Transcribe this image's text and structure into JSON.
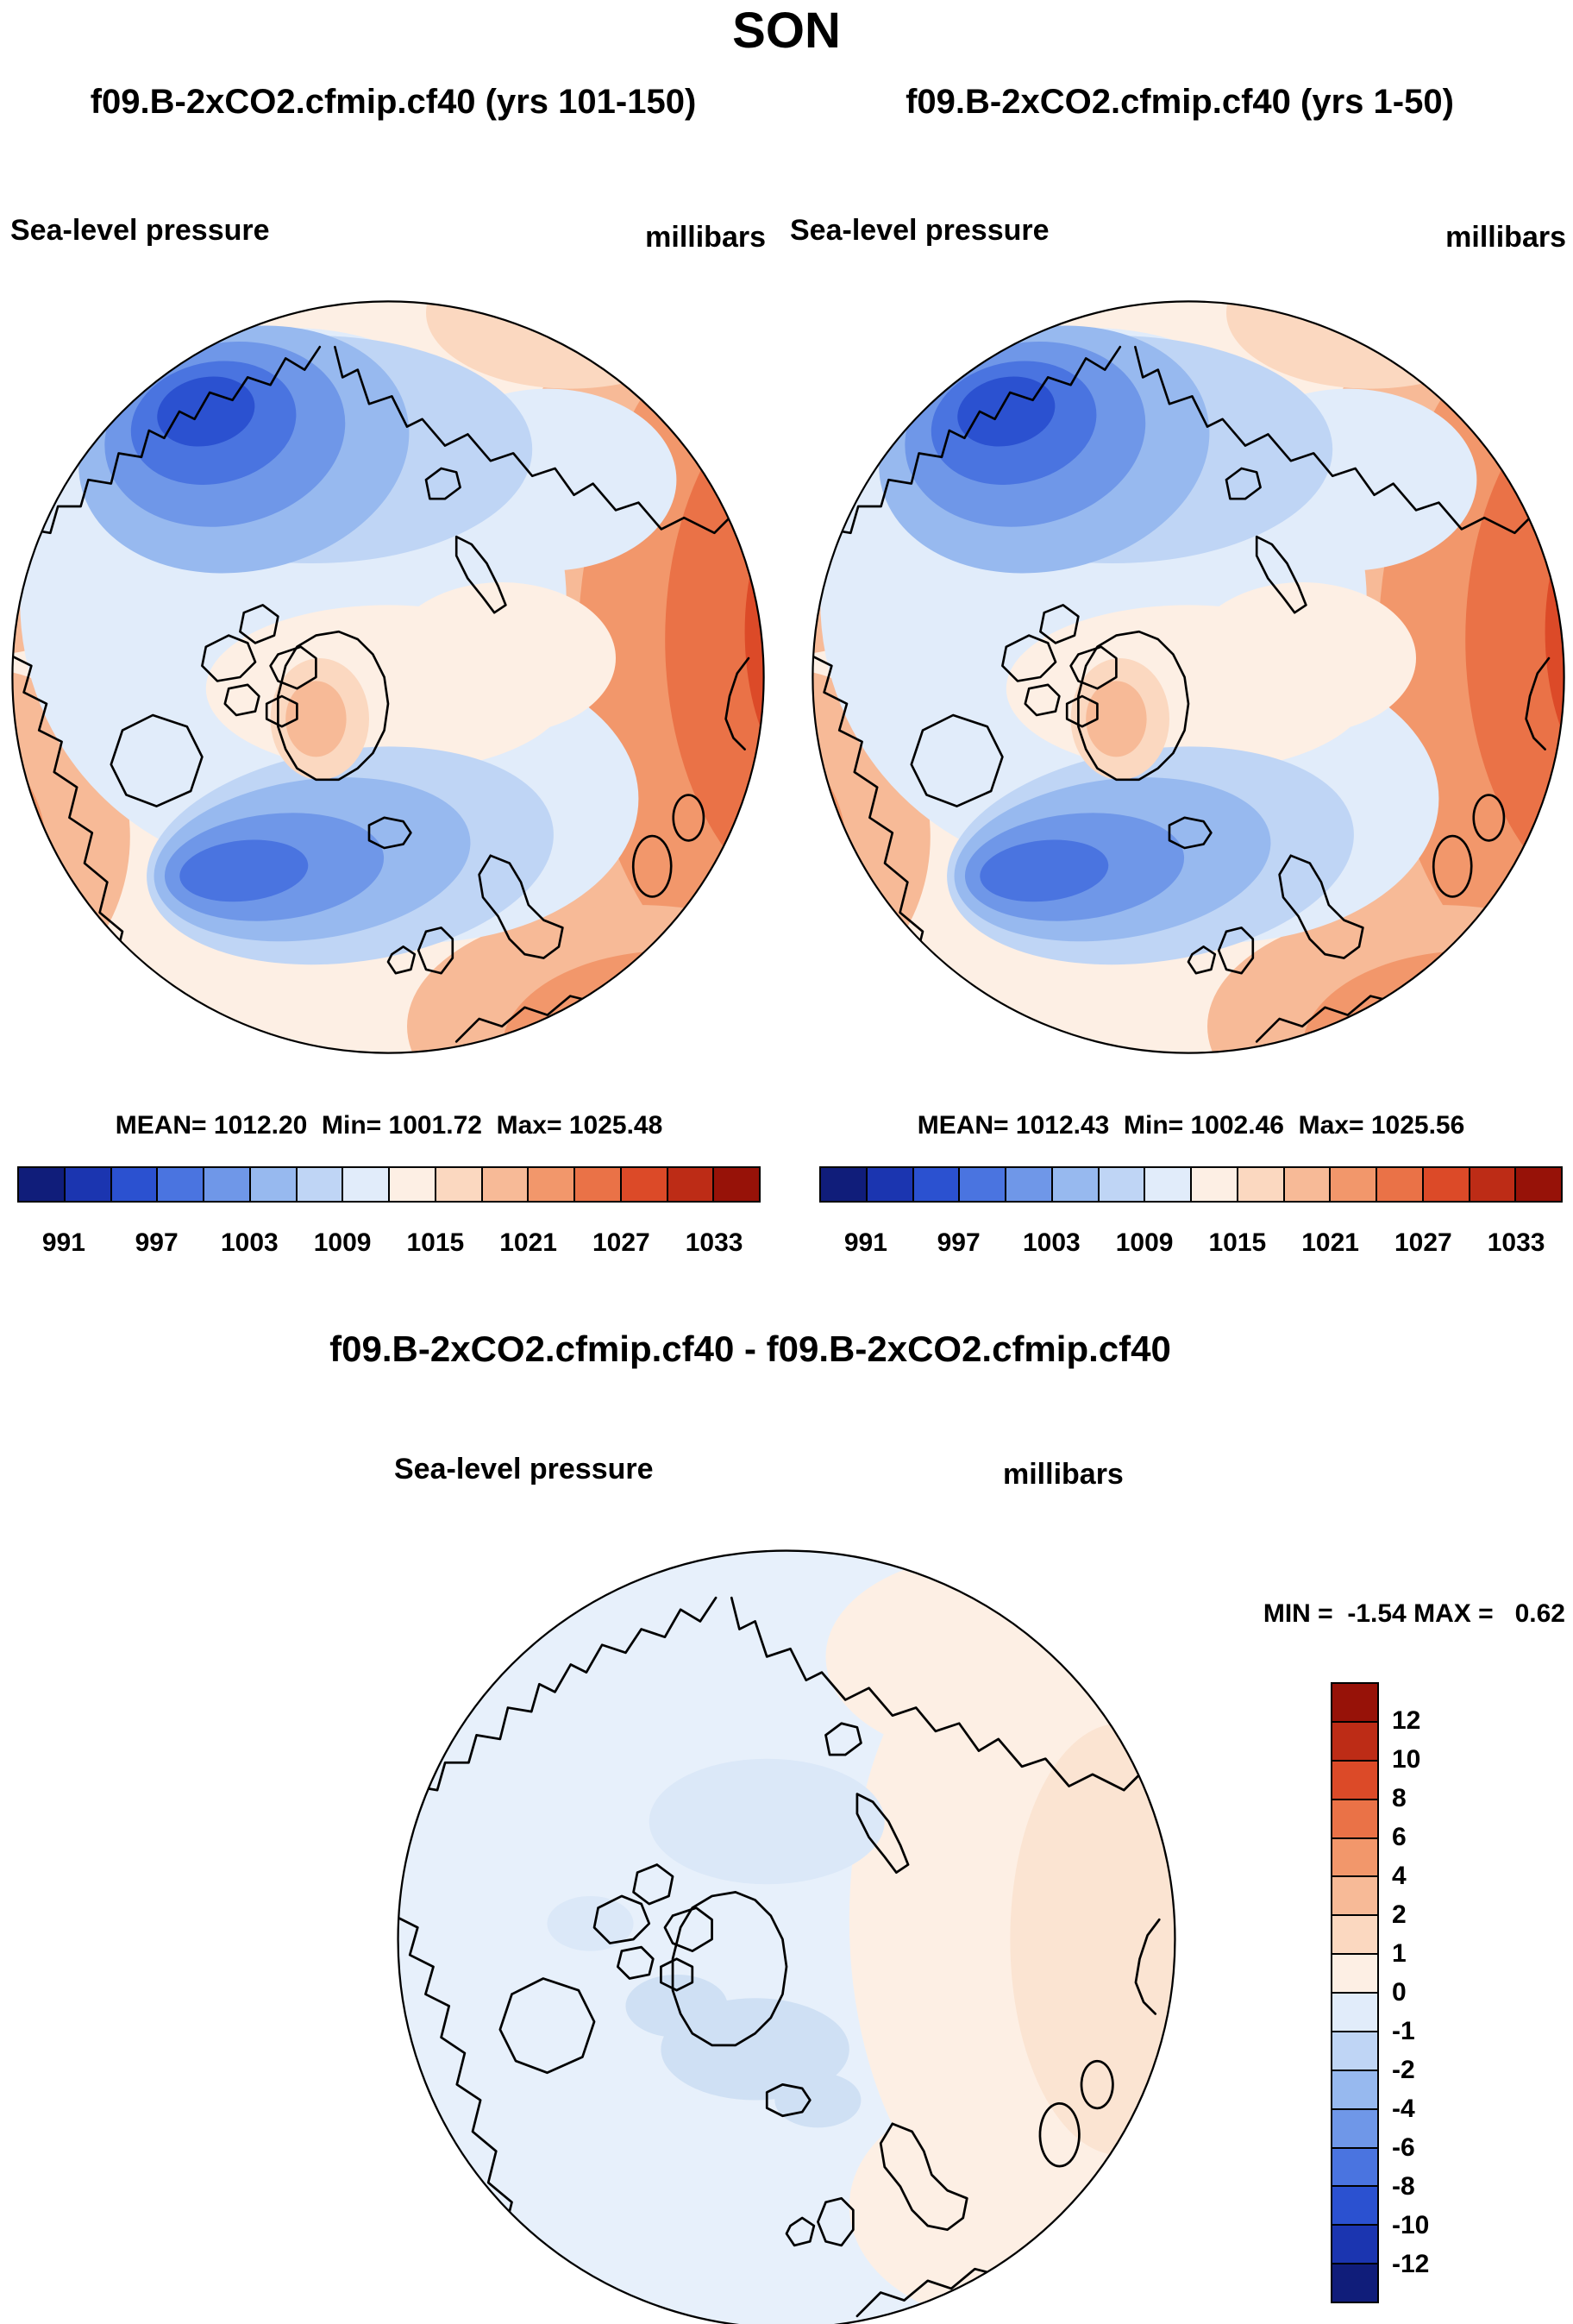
{
  "header": {
    "season": "SON"
  },
  "panels": {
    "left": {
      "run_label": "f09.B-2xCO2.cfmip.cf40 (yrs 101-150)",
      "field_label": "Sea-level pressure",
      "units": "millibars",
      "stats": "MEAN= 1012.20  Min= 1001.72  Max= 1025.48"
    },
    "right": {
      "run_label": "f09.B-2xCO2.cfmip.cf40 (yrs 1-50)",
      "field_label": "Sea-level pressure",
      "units": "millibars",
      "stats": "MEAN= 1012.43  Min= 1002.46  Max= 1025.56"
    },
    "diff": {
      "run_label": "f09.B-2xCO2.cfmip.cf40 - f09.B-2xCO2.cfmip.cf40",
      "field_label": "Sea-level pressure",
      "units": "millibars",
      "minmax": "MIN =  -1.54 MAX =   0.62"
    }
  },
  "colorbar_slp": {
    "ticks": [
      "991",
      "997",
      "1003",
      "1009",
      "1015",
      "1021",
      "1027",
      "1033"
    ],
    "colors": [
      "#101d7a",
      "#1b35b0",
      "#2b51d0",
      "#4a74e0",
      "#6f97e8",
      "#97b9ef",
      "#bfd5f5",
      "#e1ecfa",
      "#fdefe4",
      "#fbd8c0",
      "#f7ba97",
      "#f2976b",
      "#ea7247",
      "#dc4a28",
      "#bd2c16",
      "#971208"
    ]
  },
  "colorbar_diff": {
    "ticks": [
      "12",
      "10",
      "8",
      "6",
      "4",
      "2",
      "1",
      "0",
      "-1",
      "-2",
      "-4",
      "-6",
      "-8",
      "-10",
      "-12"
    ],
    "colors": [
      "#971208",
      "#bd2c16",
      "#dc4a28",
      "#ea7247",
      "#f2976b",
      "#f7ba97",
      "#fbd8c0",
      "#fdefe4",
      "#e1ecfa",
      "#bfd5f5",
      "#97b9ef",
      "#6f97e8",
      "#4a74e0",
      "#2b51d0",
      "#1b35b0",
      "#101d7a"
    ]
  },
  "chart_data": [
    {
      "type": "heatmap",
      "title": "f09.B-2xCO2.cfmip.cf40 (yrs 101-150)",
      "variable": "Sea-level pressure",
      "units": "millibars",
      "season": "SON",
      "projection": "north polar stereographic",
      "stats": {
        "mean": 1012.2,
        "min": 1001.72,
        "max": 1025.48
      },
      "contour_levels": [
        991,
        994,
        997,
        1000,
        1003,
        1006,
        1009,
        1012,
        1015,
        1018,
        1021,
        1024,
        1027,
        1030,
        1033
      ],
      "colorbar_tick_labels": [
        991,
        997,
        1003,
        1009,
        1015,
        1021,
        1027,
        1033
      ],
      "palette": "blue-white-red diverging",
      "legend_position": "bottom"
    },
    {
      "type": "heatmap",
      "title": "f09.B-2xCO2.cfmip.cf40 (yrs 1-50)",
      "variable": "Sea-level pressure",
      "units": "millibars",
      "season": "SON",
      "projection": "north polar stereographic",
      "stats": {
        "mean": 1012.43,
        "min": 1002.46,
        "max": 1025.56
      },
      "contour_levels": [
        991,
        994,
        997,
        1000,
        1003,
        1006,
        1009,
        1012,
        1015,
        1018,
        1021,
        1024,
        1027,
        1030,
        1033
      ],
      "colorbar_tick_labels": [
        991,
        997,
        1003,
        1009,
        1015,
        1021,
        1027,
        1033
      ],
      "palette": "blue-white-red diverging",
      "legend_position": "bottom"
    },
    {
      "type": "heatmap",
      "title": "f09.B-2xCO2.cfmip.cf40 - f09.B-2xCO2.cfmip.cf40",
      "variable": "Sea-level pressure difference",
      "units": "millibars",
      "season": "SON",
      "projection": "north polar stereographic",
      "stats": {
        "min": -1.54,
        "max": 0.62
      },
      "contour_levels": [
        -12,
        -10,
        -8,
        -6,
        -4,
        -2,
        -1,
        0,
        1,
        2,
        4,
        6,
        8,
        10,
        12
      ],
      "palette": "blue-white-red diverging",
      "legend_position": "right"
    }
  ]
}
